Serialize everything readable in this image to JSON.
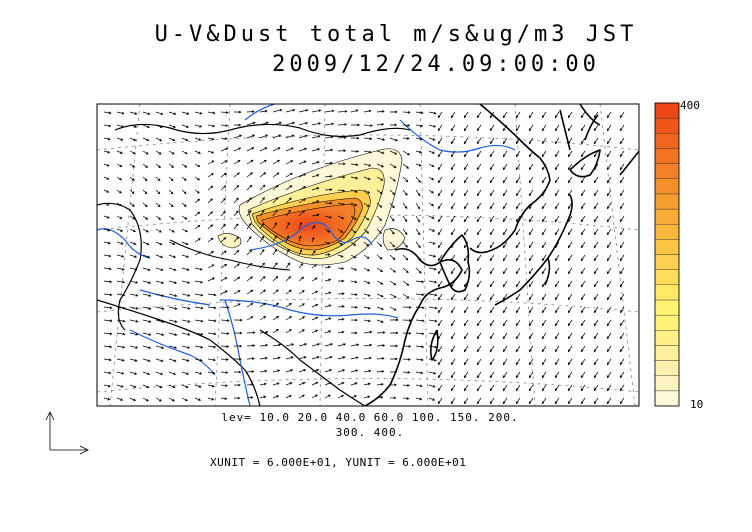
{
  "title": {
    "line1": "U-V&Dust total m/s&ug/m3 JST",
    "line2": "2009/12/24.09:00:00"
  },
  "colorbar": {
    "max_label": "400",
    "min_label": "10",
    "colors": [
      "#fdf8d8",
      "#fdf4c2",
      "#fdf0ad",
      "#fef09a",
      "#fef087",
      "#fef276",
      "#fef470",
      "#fee864",
      "#fedc58",
      "#fcd04e",
      "#fbc444",
      "#f9b83c",
      "#f8ab35",
      "#f69d2f",
      "#f58f2a",
      "#f38025",
      "#f27221",
      "#f0641d",
      "#ef5519",
      "#ee4615"
    ]
  },
  "levels": {
    "line1": "lev= 10.0 20.0 40.0 60.0 100. 150. 200.",
    "line2": "300. 400."
  },
  "units": "XUNIT = 6.000E+01, YUNIT = 6.000E+01",
  "colors": {
    "coast": "#000000",
    "river": "#1f5fe0",
    "arrow": "#000000",
    "grid": "#888888"
  }
}
